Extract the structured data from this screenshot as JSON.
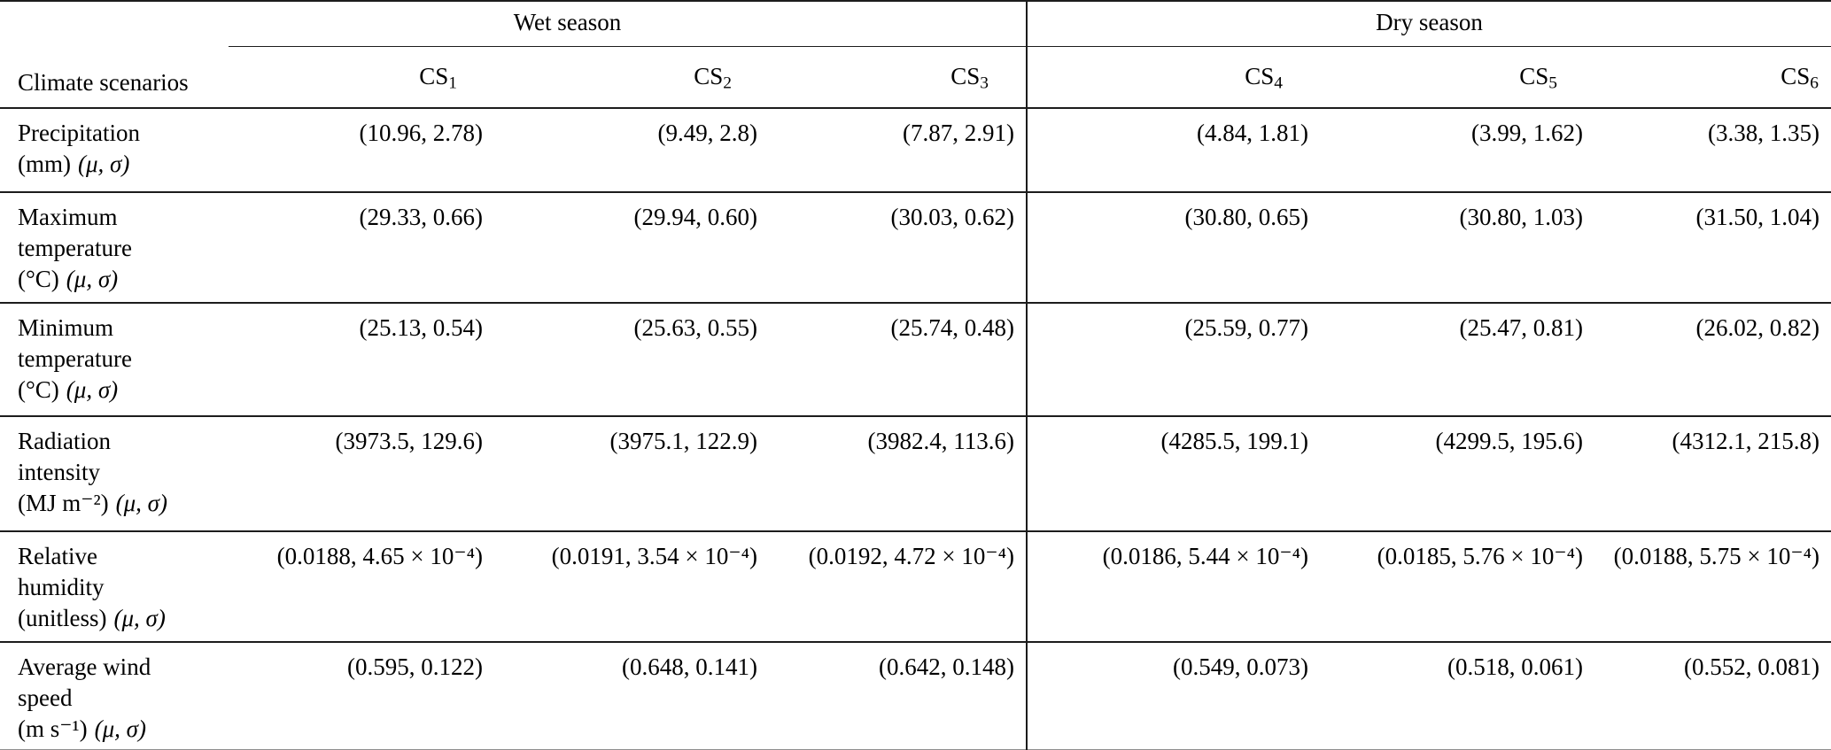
{
  "meta": {
    "musigma": "(μ, σ)",
    "rule_color": "#1c1c1c",
    "background_color": "#ffffff",
    "text_color": "#000000"
  },
  "header": {
    "row_label": "Climate scenarios",
    "season_groups": [
      {
        "label": "Wet season",
        "scenarios": [
          {
            "base": "CS",
            "sub": "1"
          },
          {
            "base": "CS",
            "sub": "2"
          },
          {
            "base": "CS",
            "sub": "3"
          }
        ]
      },
      {
        "label": "Dry season",
        "scenarios": [
          {
            "base": "CS",
            "sub": "4"
          },
          {
            "base": "CS",
            "sub": "5"
          },
          {
            "base": "CS",
            "sub": "6"
          }
        ]
      }
    ]
  },
  "rows": [
    {
      "label": "Precipitation",
      "unit": "(mm)",
      "values": [
        "(10.96, 2.78)",
        "(9.49, 2.8)",
        "(7.87, 2.91)",
        "(4.84, 1.81)",
        "(3.99, 1.62)",
        "(3.38, 1.35)"
      ]
    },
    {
      "label": "Maximum\ntemperature",
      "unit": "(°C)",
      "values": [
        "(29.33, 0.66)",
        "(29.94, 0.60)",
        "(30.03, 0.62)",
        "(30.80, 0.65)",
        "(30.80, 1.03)",
        "(31.50, 1.04)"
      ]
    },
    {
      "label": "Minimum\ntemperature",
      "unit": "(°C)",
      "values": [
        "(25.13, 0.54)",
        "(25.63, 0.55)",
        "(25.74, 0.48)",
        "(25.59, 0.77)",
        "(25.47, 0.81)",
        "(26.02, 0.82)"
      ]
    },
    {
      "label": "Radiation\nintensity",
      "unit": "(MJ m⁻²)",
      "values": [
        "(3973.5, 129.6)",
        "(3975.1, 122.9)",
        "(3982.4, 113.6)",
        "(4285.5, 199.1)",
        "(4299.5, 195.6)",
        "(4312.1, 215.8)"
      ]
    },
    {
      "label": "Relative\nhumidity",
      "unit": "(unitless)",
      "values": [
        "(0.0188, 4.65 × 10⁻⁴)",
        "(0.0191, 3.54 × 10⁻⁴)",
        "(0.0192, 4.72 × 10⁻⁴)",
        "(0.0186, 5.44 × 10⁻⁴)",
        "(0.0185, 5.76 × 10⁻⁴)",
        "(0.0188, 5.75 × 10⁻⁴)"
      ]
    },
    {
      "label": "Average wind\nspeed",
      "unit": "(m s⁻¹)",
      "values": [
        "(0.595, 0.122)",
        "(0.648, 0.141)",
        "(0.642, 0.148)",
        "(0.549, 0.073)",
        "(0.518, 0.061)",
        "(0.552, 0.081)"
      ]
    }
  ]
}
